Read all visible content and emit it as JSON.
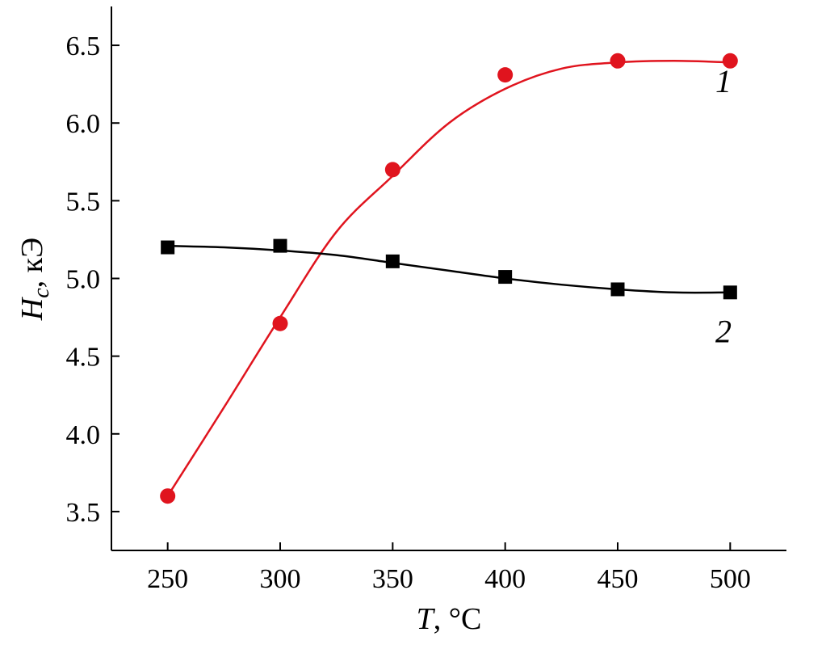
{
  "chart_data": {
    "type": "line",
    "xlabel": {
      "italic": "T",
      "rest": ", °C"
    },
    "ylabel": {
      "italic": "H",
      "sub": "c",
      "rest": ", кЭ"
    },
    "xlim": [
      225,
      525
    ],
    "ylim": [
      3.25,
      6.75
    ],
    "x_ticks": [
      250,
      300,
      350,
      400,
      450,
      500
    ],
    "y_ticks": [
      3.5,
      4.0,
      4.5,
      5.0,
      5.5,
      6.0,
      6.5
    ],
    "x_tick_labels": [
      "250",
      "300",
      "350",
      "400",
      "450",
      "500"
    ],
    "y_tick_labels": [
      "3.5",
      "4.0",
      "4.5",
      "5.0",
      "5.5",
      "6.0",
      "6.5"
    ],
    "grid": false,
    "series": [
      {
        "name": "1",
        "marker": "circle",
        "color": "#e0141e",
        "line_color": "#e0141e",
        "x": [
          250,
          300,
          350,
          400,
          450,
          500
        ],
        "y": [
          3.6,
          4.71,
          5.7,
          6.31,
          6.4,
          6.4
        ],
        "curve_x": [
          250,
          275,
          300,
          325,
          350,
          375,
          400,
          425,
          450,
          475,
          500
        ],
        "curve_y": [
          3.6,
          4.17,
          4.75,
          5.3,
          5.66,
          6.0,
          6.22,
          6.35,
          6.39,
          6.4,
          6.39
        ],
        "label_at": [
          497,
          6.2
        ]
      },
      {
        "name": "2",
        "marker": "square",
        "color": "#000000",
        "line_color": "#000000",
        "x": [
          250,
          300,
          350,
          400,
          450,
          500
        ],
        "y": [
          5.2,
          5.21,
          5.11,
          5.01,
          4.93,
          4.91
        ],
        "curve_x": [
          250,
          275,
          300,
          325,
          350,
          375,
          400,
          425,
          450,
          475,
          500
        ],
        "curve_y": [
          5.21,
          5.2,
          5.18,
          5.15,
          5.1,
          5.05,
          5.0,
          4.96,
          4.93,
          4.91,
          4.91
        ],
        "label_at": [
          497,
          4.59
        ]
      }
    ]
  }
}
